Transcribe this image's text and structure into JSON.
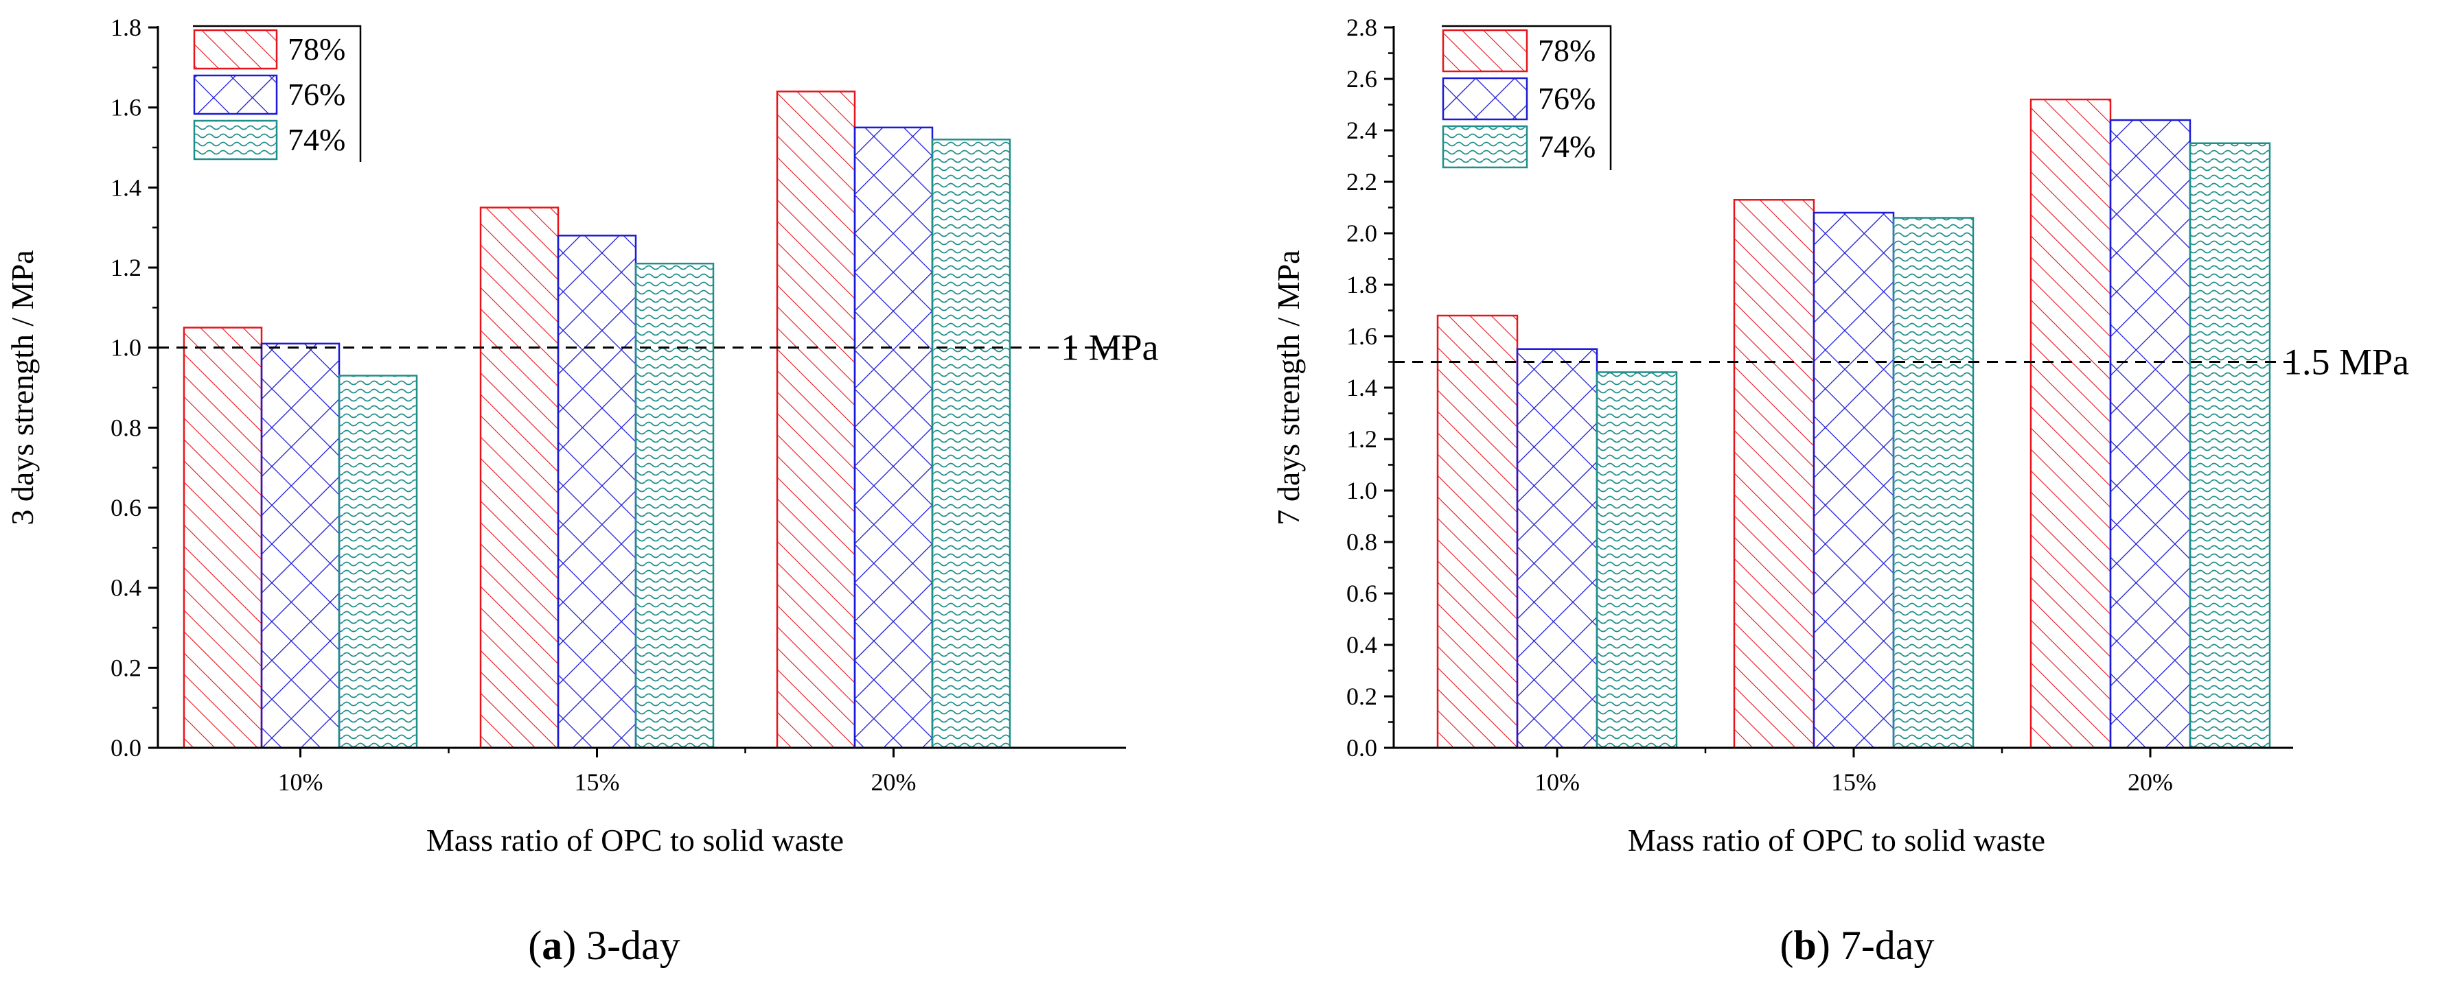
{
  "chart_data": [
    {
      "type": "bar",
      "title": "",
      "xlabel": "Mass ratio of OPC to solid waste",
      "ylabel": "3 days strength / MPa",
      "categories": [
        "10%",
        "15%",
        "20%"
      ],
      "ylim": [
        0,
        1.8
      ],
      "yticks": [
        "0.0",
        "0.2",
        "0.4",
        "0.6",
        "0.8",
        "1.0",
        "1.2",
        "1.4",
        "1.6",
        "1.8"
      ],
      "series": [
        {
          "name": "78%",
          "values": [
            1.05,
            1.35,
            1.64
          ],
          "color": "#e8141b",
          "pattern": "diagonal"
        },
        {
          "name": "76%",
          "values": [
            1.01,
            1.28,
            1.55
          ],
          "color": "#1c1ad6",
          "pattern": "crosshatch"
        },
        {
          "name": "74%",
          "values": [
            0.93,
            1.21,
            1.52
          ],
          "color": "#1e8f8a",
          "pattern": "wave"
        }
      ],
      "reference_line": {
        "value": 1.0,
        "label": "1 MPa"
      },
      "legend": "top-left",
      "caption": {
        "letter": "a",
        "text": " 3-day"
      }
    },
    {
      "type": "bar",
      "title": "",
      "xlabel": "Mass ratio of OPC to solid waste",
      "ylabel": "7 days strength / MPa",
      "categories": [
        "10%",
        "15%",
        "20%"
      ],
      "ylim": [
        0,
        2.8
      ],
      "yticks": [
        "0.0",
        "0.2",
        "0.4",
        "0.6",
        "0.8",
        "1.0",
        "1.2",
        "1.4",
        "1.6",
        "1.8",
        "2.0",
        "2.2",
        "2.4",
        "2.6",
        "2.8"
      ],
      "series": [
        {
          "name": "78%",
          "values": [
            1.68,
            2.13,
            2.52
          ],
          "color": "#e8141b",
          "pattern": "diagonal"
        },
        {
          "name": "76%",
          "values": [
            1.55,
            2.08,
            2.44
          ],
          "color": "#1c1ad6",
          "pattern": "crosshatch"
        },
        {
          "name": "74%",
          "values": [
            1.46,
            2.06,
            2.35
          ],
          "color": "#1e8f8a",
          "pattern": "wave"
        }
      ],
      "reference_line": {
        "value": 1.5,
        "label": "1.5 MPa"
      },
      "legend": "top-left",
      "caption": {
        "letter": "b",
        "text": " 7-day"
      }
    }
  ]
}
